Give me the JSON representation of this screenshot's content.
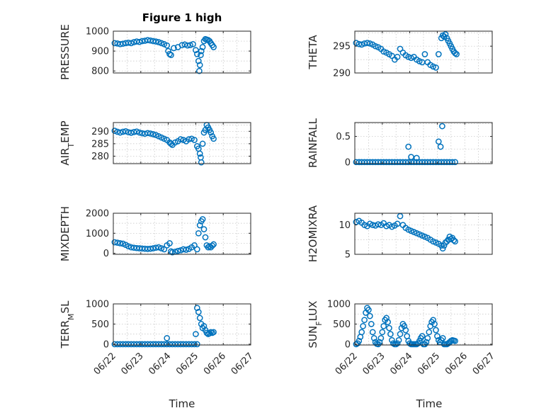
{
  "chart_data": [
    {
      "type": "scatter",
      "title": "Figure 1 high",
      "ylabel_parts": [
        {
          "t": "PRESSURE",
          "sub": false
        }
      ],
      "ylim": [
        790,
        1000
      ],
      "yticks": [
        800,
        900,
        1000
      ],
      "xlim": [
        0,
        5
      ],
      "xticks": [
        0,
        1,
        2,
        3,
        4,
        5
      ],
      "grid": true,
      "color": "#0072BD",
      "x": [
        0.05,
        0.15,
        0.25,
        0.35,
        0.45,
        0.55,
        0.65,
        0.75,
        0.85,
        0.95,
        1.05,
        1.15,
        1.25,
        1.35,
        1.45,
        1.55,
        1.65,
        1.75,
        1.85,
        1.95,
        2.0,
        2.05,
        2.1,
        2.2,
        2.35,
        2.5,
        2.6,
        2.7,
        2.8,
        2.9,
        3.0,
        3.05,
        3.1,
        3.13,
        3.15,
        3.18,
        3.2,
        3.25,
        3.3,
        3.35,
        3.4,
        3.45,
        3.5,
        3.55,
        3.6,
        3.65
      ],
      "y": [
        940,
        938,
        935,
        937,
        940,
        942,
        940,
        945,
        948,
        946,
        950,
        952,
        955,
        953,
        950,
        948,
        945,
        940,
        935,
        928,
        900,
        885,
        880,
        915,
        920,
        930,
        933,
        928,
        930,
        935,
        905,
        885,
        850,
        800,
        830,
        880,
        900,
        920,
        950,
        960,
        958,
        955,
        950,
        940,
        930,
        920
      ]
    },
    {
      "type": "scatter",
      "ylabel_parts": [
        {
          "t": "THETA",
          "sub": false
        }
      ],
      "ylim": [
        290,
        297.8
      ],
      "yticks": [
        290,
        295
      ],
      "xlim": [
        0,
        5
      ],
      "xticks": [
        0,
        1,
        2,
        3,
        4,
        5
      ],
      "grid": true,
      "color": "#0072BD",
      "x": [
        0.05,
        0.15,
        0.25,
        0.35,
        0.45,
        0.55,
        0.65,
        0.75,
        0.85,
        0.95,
        1.05,
        1.15,
        1.25,
        1.35,
        1.45,
        1.55,
        1.65,
        1.75,
        1.85,
        1.95,
        2.05,
        2.15,
        2.25,
        2.35,
        2.45,
        2.55,
        2.65,
        2.75,
        2.85,
        2.95,
        3.05,
        3.15,
        3.2,
        3.25,
        3.3,
        3.35,
        3.4,
        3.45,
        3.5,
        3.55,
        3.6,
        3.65,
        3.7
      ],
      "y": [
        295.6,
        295.4,
        295.3,
        295.5,
        295.6,
        295.5,
        295.3,
        295.0,
        294.8,
        294.5,
        294.0,
        293.8,
        293.5,
        293.2,
        292.5,
        293.0,
        294.5,
        293.8,
        293.3,
        293.0,
        292.8,
        293.0,
        292.5,
        292.2,
        292.0,
        293.5,
        292.0,
        291.5,
        291.2,
        291.0,
        293.5,
        296.5,
        297.0,
        296.8,
        297.2,
        296.5,
        296.0,
        295.5,
        295.0,
        294.5,
        294.0,
        293.7,
        293.5
      ]
    },
    {
      "type": "scatter",
      "ylabel_parts": [
        {
          "t": "AIR",
          "sub": false
        },
        {
          "t": "T",
          "sub": true
        },
        {
          "t": "EMP",
          "sub": false
        }
      ],
      "ylim": [
        277,
        293.5
      ],
      "yticks": [
        280,
        285,
        290
      ],
      "xlim": [
        0,
        5
      ],
      "xticks": [
        0,
        1,
        2,
        3,
        4,
        5
      ],
      "grid": true,
      "color": "#0072BD",
      "x": [
        0.05,
        0.15,
        0.25,
        0.35,
        0.45,
        0.55,
        0.65,
        0.75,
        0.85,
        0.95,
        1.05,
        1.15,
        1.25,
        1.35,
        1.45,
        1.55,
        1.65,
        1.75,
        1.85,
        1.95,
        2.05,
        2.1,
        2.15,
        2.25,
        2.35,
        2.45,
        2.55,
        2.65,
        2.75,
        2.85,
        2.95,
        3.05,
        3.1,
        3.15,
        3.18,
        3.2,
        3.25,
        3.3,
        3.35,
        3.4,
        3.45,
        3.5,
        3.55,
        3.6,
        3.65
      ],
      "y": [
        290.2,
        289.8,
        289.5,
        289.8,
        290.0,
        289.6,
        289.4,
        289.7,
        289.9,
        289.5,
        289.2,
        289.0,
        289.3,
        289.1,
        288.8,
        288.5,
        288.0,
        287.5,
        287.0,
        286.5,
        285.5,
        285.0,
        284.5,
        285.5,
        286.0,
        286.8,
        286.5,
        286.0,
        286.8,
        287.0,
        286.5,
        284.0,
        283.0,
        281.0,
        279.5,
        277.5,
        285.0,
        289.5,
        290.5,
        292.5,
        291.5,
        290.5,
        289.5,
        288.0,
        287.0
      ]
    },
    {
      "type": "scatter",
      "ylabel_parts": [
        {
          "t": "RAINFALL",
          "sub": false
        }
      ],
      "ylim": [
        -0.03,
        0.77
      ],
      "yticks": [
        0,
        0.5
      ],
      "xlim": [
        0,
        5
      ],
      "xticks": [
        0,
        1,
        2,
        3,
        4,
        5
      ],
      "grid": true,
      "color": "#0072BD",
      "x": [
        0.05,
        0.15,
        0.25,
        0.35,
        0.45,
        0.55,
        0.65,
        0.75,
        0.85,
        0.95,
        1.05,
        1.15,
        1.25,
        1.35,
        1.45,
        1.55,
        1.65,
        1.75,
        1.85,
        1.95,
        2.05,
        2.15,
        2.25,
        2.35,
        2.45,
        2.55,
        2.65,
        2.75,
        2.85,
        2.95,
        3.05,
        3.15,
        3.25,
        3.35,
        3.45,
        3.55,
        3.65,
        1.95,
        2.05,
        2.25,
        3.05,
        3.12,
        3.18
      ],
      "y": [
        0,
        0,
        0,
        0,
        0,
        0,
        0,
        0,
        0,
        0,
        0,
        0,
        0,
        0,
        0,
        0,
        0,
        0,
        0,
        0,
        0,
        0,
        0,
        0,
        0,
        0,
        0,
        0,
        0,
        0,
        0,
        0,
        0,
        0,
        0,
        0,
        0,
        0.3,
        0.1,
        0.08,
        0.4,
        0.3,
        0.7
      ]
    },
    {
      "type": "scatter",
      "ylabel_parts": [
        {
          "t": "MIXDEPTH",
          "sub": false
        }
      ],
      "ylim": [
        -50,
        2000
      ],
      "yticks": [
        0,
        1000,
        2000
      ],
      "xlim": [
        0,
        5
      ],
      "xticks": [
        0,
        1,
        2,
        3,
        4,
        5
      ],
      "grid": true,
      "color": "#0072BD",
      "x": [
        0.05,
        0.15,
        0.25,
        0.35,
        0.45,
        0.55,
        0.65,
        0.75,
        0.85,
        0.95,
        1.05,
        1.15,
        1.25,
        1.35,
        1.45,
        1.55,
        1.65,
        1.75,
        1.85,
        1.95,
        2.05,
        2.1,
        2.15,
        2.25,
        2.35,
        2.45,
        2.55,
        2.65,
        2.75,
        2.85,
        2.95,
        3.05,
        3.1,
        3.15,
        3.2,
        3.25,
        3.3,
        3.35,
        3.4,
        3.45,
        3.5,
        3.55,
        3.6,
        3.65
      ],
      "y": [
        550,
        530,
        500,
        480,
        420,
        350,
        300,
        280,
        260,
        250,
        240,
        230,
        220,
        230,
        250,
        280,
        300,
        250,
        200,
        400,
        500,
        100,
        50,
        80,
        120,
        150,
        200,
        180,
        220,
        300,
        400,
        200,
        1000,
        1400,
        1600,
        1700,
        1200,
        800,
        400,
        300,
        350,
        300,
        380,
        450
      ]
    },
    {
      "type": "scatter",
      "ylabel_parts": [
        {
          "t": "H2OMIXRA",
          "sub": false
        }
      ],
      "ylim": [
        5,
        12
      ],
      "yticks": [
        5,
        10
      ],
      "xlim": [
        0,
        5
      ],
      "xticks": [
        0,
        1,
        2,
        3,
        4,
        5
      ],
      "grid": true,
      "color": "#0072BD",
      "x": [
        0.05,
        0.15,
        0.25,
        0.35,
        0.45,
        0.55,
        0.65,
        0.75,
        0.85,
        0.95,
        1.05,
        1.15,
        1.25,
        1.35,
        1.45,
        1.55,
        1.65,
        1.75,
        1.85,
        1.95,
        2.05,
        2.15,
        2.25,
        2.35,
        2.45,
        2.55,
        2.65,
        2.75,
        2.85,
        2.95,
        3.05,
        3.15,
        3.2,
        3.25,
        3.3,
        3.35,
        3.4,
        3.45,
        3.5,
        3.55,
        3.6,
        3.65
      ],
      "y": [
        10.5,
        10.7,
        10.4,
        10.0,
        9.8,
        10.2,
        10.0,
        9.9,
        10.1,
        10.0,
        10.3,
        9.8,
        10.0,
        9.7,
        9.9,
        10.2,
        11.5,
        10.0,
        9.5,
        9.2,
        9.0,
        8.8,
        8.6,
        8.4,
        8.2,
        8.0,
        7.8,
        7.5,
        7.2,
        7.0,
        6.8,
        6.5,
        6.0,
        6.5,
        7.0,
        7.2,
        7.5,
        8.0,
        7.6,
        7.8,
        7.4,
        7.2
      ]
    },
    {
      "type": "scatter",
      "ylabel_parts": [
        {
          "t": "TERR",
          "sub": false
        },
        {
          "t": "M",
          "sub": true
        },
        {
          "t": "SL",
          "sub": false
        }
      ],
      "ylim": [
        -20,
        1000
      ],
      "yticks": [
        0,
        500,
        1000
      ],
      "xlim": [
        0,
        5
      ],
      "xticks": [
        0,
        1,
        2,
        3,
        4,
        5
      ],
      "grid": true,
      "color": "#0072BD",
      "x": [
        0.05,
        0.15,
        0.25,
        0.35,
        0.45,
        0.55,
        0.65,
        0.75,
        0.85,
        0.95,
        1.05,
        1.15,
        1.25,
        1.35,
        1.45,
        1.55,
        1.65,
        1.75,
        1.85,
        1.95,
        2.05,
        2.15,
        2.25,
        2.35,
        2.45,
        2.55,
        2.65,
        2.75,
        2.85,
        2.95,
        3.05,
        1.95,
        3.0,
        3.05,
        3.1,
        3.15,
        3.2,
        3.25,
        3.3,
        3.35,
        3.4,
        3.45,
        3.5,
        3.55,
        3.6,
        3.65
      ],
      "y": [
        0,
        0,
        0,
        0,
        0,
        0,
        0,
        0,
        0,
        0,
        0,
        0,
        0,
        0,
        0,
        0,
        0,
        0,
        0,
        0,
        0,
        0,
        0,
        0,
        0,
        0,
        0,
        0,
        0,
        0,
        0,
        150,
        250,
        900,
        800,
        650,
        500,
        400,
        450,
        350,
        280,
        250,
        270,
        300,
        280,
        300
      ]
    },
    {
      "type": "scatter",
      "ylabel_parts": [
        {
          "t": "SUN",
          "sub": false
        },
        {
          "t": "F",
          "sub": true
        },
        {
          "t": "LUX",
          "sub": false
        }
      ],
      "ylim": [
        -20,
        1000
      ],
      "yticks": [
        0,
        500,
        1000
      ],
      "xlim": [
        0,
        5
      ],
      "xticks": [
        0,
        1,
        2,
        3,
        4,
        5
      ],
      "grid": true,
      "color": "#0072BD",
      "x": [
        0.05,
        0.1,
        0.15,
        0.2,
        0.25,
        0.3,
        0.35,
        0.4,
        0.45,
        0.5,
        0.55,
        0.6,
        0.65,
        0.7,
        0.75,
        0.8,
        0.85,
        0.9,
        0.95,
        1.0,
        1.05,
        1.1,
        1.15,
        1.2,
        1.25,
        1.3,
        1.35,
        1.4,
        1.45,
        1.5,
        1.55,
        1.6,
        1.65,
        1.7,
        1.75,
        1.8,
        1.85,
        1.9,
        1.95,
        2.0,
        2.05,
        2.1,
        2.15,
        2.2,
        2.25,
        2.3,
        2.35,
        2.4,
        2.45,
        2.5,
        2.55,
        2.6,
        2.65,
        2.7,
        2.75,
        2.8,
        2.85,
        2.9,
        2.95,
        3.0,
        3.05,
        3.1,
        3.15,
        3.2,
        3.25,
        3.3,
        3.35,
        3.4,
        3.45,
        3.5,
        3.55,
        3.6,
        3.65
      ],
      "y": [
        0,
        20,
        80,
        180,
        300,
        450,
        600,
        780,
        900,
        850,
        700,
        500,
        300,
        150,
        50,
        10,
        0,
        50,
        150,
        300,
        450,
        600,
        650,
        550,
        400,
        250,
        100,
        20,
        0,
        0,
        20,
        100,
        250,
        400,
        500,
        450,
        350,
        200,
        80,
        20,
        0,
        0,
        0,
        0,
        0,
        20,
        80,
        150,
        200,
        0,
        0,
        50,
        150,
        300,
        450,
        550,
        600,
        500,
        350,
        200,
        100,
        50,
        100,
        150,
        0,
        0,
        0,
        20,
        50,
        80,
        100,
        90,
        80
      ]
    }
  ],
  "xticklabels": [
    "06/22",
    "06/23",
    "06/24",
    "06/25",
    "06/26",
    "06/27"
  ],
  "xlabel": "Time"
}
